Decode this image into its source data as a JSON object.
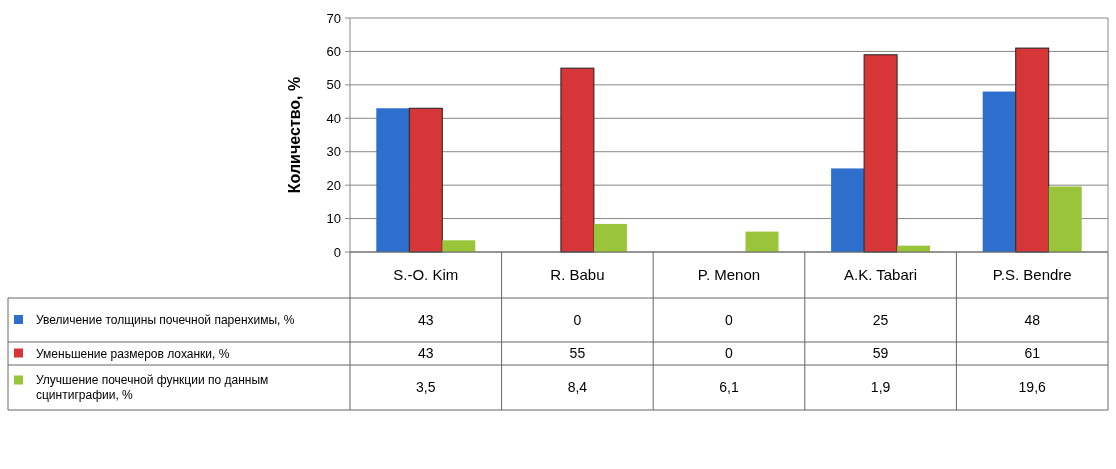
{
  "chart_data": {
    "type": "bar",
    "ylabel": "Количество, %",
    "categories": [
      "S.-O. Kim",
      "R. Babu",
      "P. Menon",
      "A.K. Tabari",
      "P.S. Bendre"
    ],
    "series": [
      {
        "name": "Увеличение толщины почечной паренхимы, %",
        "color": "#2e6fce",
        "values": [
          43,
          0,
          0,
          25,
          48
        ],
        "value_labels": [
          "43",
          "0",
          "0",
          "25",
          "48"
        ]
      },
      {
        "name": "Уменьшение размеров лоханки, %",
        "color": "#d63638",
        "values": [
          43,
          55,
          0,
          59,
          61
        ],
        "value_labels": [
          "43",
          "55",
          "0",
          "59",
          "61"
        ]
      },
      {
        "name": "Улучшение почечной функции по данным сцинтиграфии, %",
        "color": "#9ac43a",
        "values": [
          3.5,
          8.4,
          6.1,
          1.9,
          19.6
        ],
        "value_labels": [
          "3,5",
          "8,4",
          "6,1",
          "1,9",
          "19,6"
        ]
      }
    ],
    "ylim": [
      0,
      70
    ],
    "yticks": [
      0,
      10,
      20,
      30,
      40,
      50,
      60,
      70
    ],
    "grid": "y",
    "legend": "bottom"
  }
}
